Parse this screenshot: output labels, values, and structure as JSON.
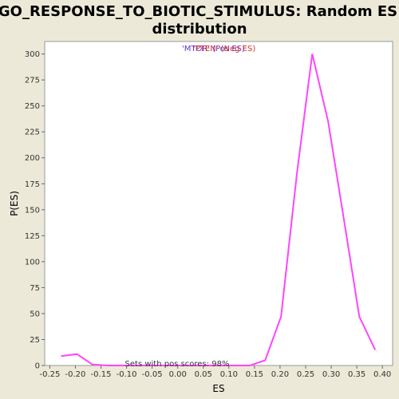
{
  "chart_data": {
    "type": "line",
    "title_line1": "GO_RESPONSE_TO_BIOTIC_STIMULUS: Random ES",
    "title_line2": "distribution",
    "xlabel": "ES",
    "ylabel": "P(ES)",
    "xlim": [
      -0.26,
      0.42
    ],
    "ylim": [
      0,
      312
    ],
    "x_ticks": [
      -0.25,
      -0.2,
      -0.15,
      -0.1,
      -0.05,
      0.0,
      0.05,
      0.1,
      0.15,
      0.2,
      0.25,
      0.3,
      0.35,
      0.4
    ],
    "x_tick_labels": [
      "-0.25",
      "-0.20",
      "-0.15",
      "-0.10",
      "-0.05",
      "0.00",
      "0.05",
      "0.10",
      "0.15",
      "0.20",
      "0.25",
      "0.30",
      "0.35",
      "0.40"
    ],
    "y_ticks": [
      0,
      25,
      50,
      75,
      100,
      125,
      150,
      175,
      200,
      225,
      250,
      275,
      300
    ],
    "y_tick_labels": [
      "0",
      "25",
      "50",
      "75",
      "100",
      "125",
      "150",
      "175",
      "200",
      "225",
      "250",
      "275",
      "300"
    ],
    "grid": false,
    "series": [
      {
        "name": "random ES distribution",
        "color": "#ff44ff",
        "x": [
          -0.228,
          -0.197,
          -0.167,
          -0.136,
          -0.105,
          -0.074,
          -0.044,
          -0.013,
          0.018,
          0.049,
          0.079,
          0.11,
          0.141,
          0.171,
          0.202,
          0.233,
          0.263,
          0.294,
          0.325,
          0.355,
          0.386
        ],
        "y": [
          9,
          11,
          1,
          0,
          0,
          0,
          0,
          0,
          0,
          0,
          0,
          0,
          0,
          5,
          47,
          185,
          300,
          235,
          140,
          47,
          15
        ]
      }
    ],
    "annotations": {
      "legend_text_1": "'MTOR' (Pos ES)",
      "legend_color_1": "#6633cc",
      "legend_text_2": "'PTEN' (Neg ES)",
      "legend_color_2": "#cc3333",
      "bottom_note": "Sets with pos scores: 98%"
    }
  }
}
